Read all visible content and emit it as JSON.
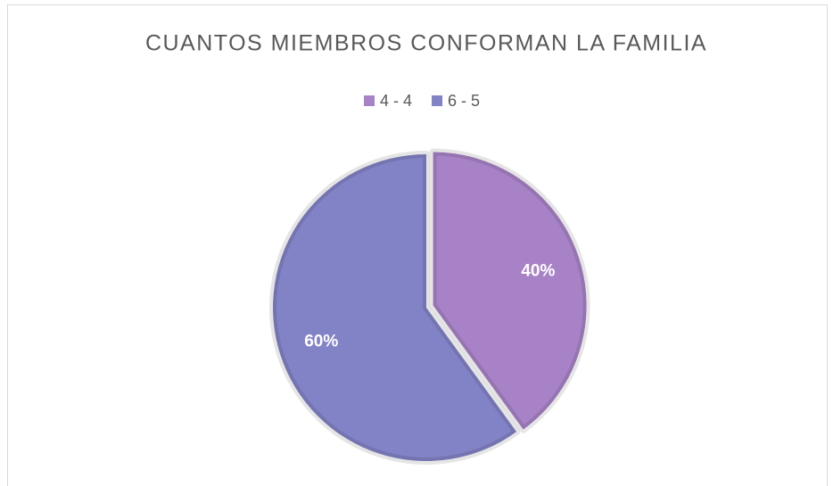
{
  "chart_data": {
    "type": "pie",
    "title": "CUANTOS MIEMBROS CONFORMAN LA FAMILIA",
    "categories": [
      "4 - 4",
      "6 - 5"
    ],
    "values": [
      40,
      60
    ],
    "value_labels": [
      "40%",
      "60%"
    ],
    "colors": [
      "#a882c6",
      "#8282c6"
    ],
    "legend": "top"
  }
}
